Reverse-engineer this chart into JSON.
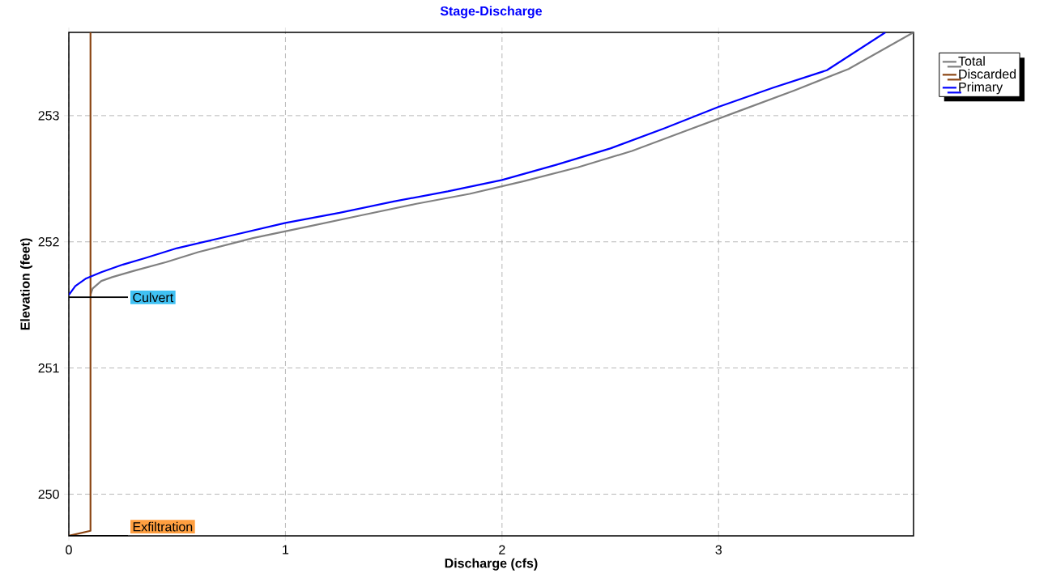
{
  "chart_data": {
    "type": "line",
    "title": "Stage-Discharge",
    "xlabel": "Discharge  (cfs)",
    "ylabel": "Elevation  (feet)",
    "xlim": [
      0,
      3.9
    ],
    "ylim": [
      249.67,
      253.66
    ],
    "xticks": [
      0,
      1,
      2,
      3
    ],
    "yticks": [
      250,
      251,
      252,
      253
    ],
    "grid": true,
    "legend": "top right",
    "marker": "none",
    "line_style": "solid",
    "series": [
      {
        "name": "Total",
        "color": "#808080",
        "x": [
          0.1,
          0.11,
          0.15,
          0.2,
          0.3,
          0.45,
          0.6,
          0.85,
          1.1,
          1.35,
          1.6,
          1.85,
          2.1,
          2.35,
          2.6,
          2.85,
          3.1,
          3.35,
          3.6,
          3.9
        ],
        "values": [
          251.58,
          251.63,
          251.69,
          251.72,
          251.77,
          251.84,
          251.92,
          252.03,
          252.12,
          252.21,
          252.3,
          252.38,
          252.48,
          252.59,
          252.72,
          252.88,
          253.04,
          253.2,
          253.37,
          253.66
        ]
      },
      {
        "name": "Discarded",
        "color": "#8b4513",
        "x": [
          0,
          0.1,
          0.1
        ],
        "values": [
          249.67,
          249.71,
          253.66
        ]
      },
      {
        "name": "Primary",
        "color": "#0000ff",
        "x": [
          0,
          0.03,
          0.08,
          0.15,
          0.25,
          0.35,
          0.5,
          0.75,
          1.0,
          1.25,
          1.5,
          1.75,
          2.0,
          2.25,
          2.5,
          2.75,
          3.0,
          3.25,
          3.5,
          3.77
        ],
        "values": [
          251.58,
          251.65,
          251.71,
          251.76,
          251.82,
          251.87,
          251.95,
          252.05,
          252.15,
          252.23,
          252.32,
          252.4,
          252.49,
          252.61,
          252.74,
          252.9,
          253.07,
          253.22,
          253.36,
          253.66
        ]
      }
    ],
    "annotations": [
      {
        "text": "Culvert",
        "x": 0,
        "y": 251.56
      },
      {
        "text": "Exfiltration",
        "x": 0,
        "y": 249.67
      }
    ]
  }
}
